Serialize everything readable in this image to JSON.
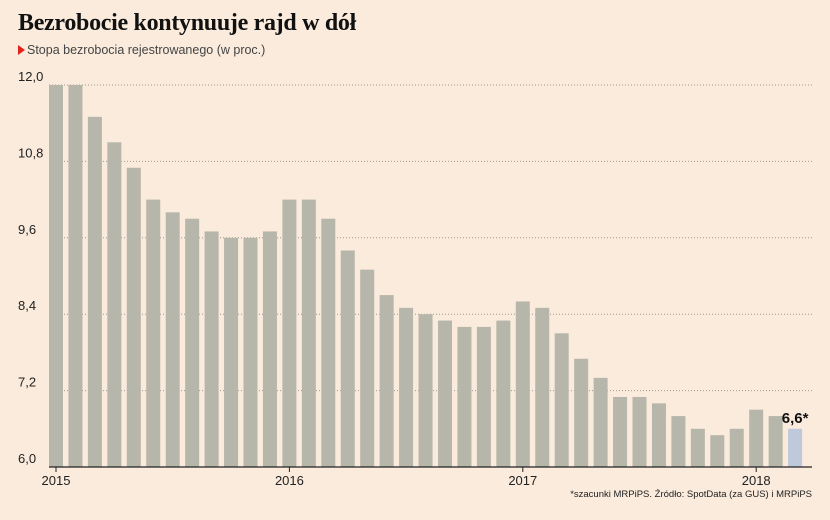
{
  "title": "Bezrobocie kontynuuje rajd w dół",
  "subtitle": "Stopa bezrobocia rejestrowanego (w proc.)",
  "source": "*szacunki MRPiPS. Źródło: SpotData (za GUS) i MRPiPS",
  "colors": {
    "bar": "#b6b6aa",
    "highlight": "#bfc9dc",
    "background": "#faebdc",
    "accent": "#e2231a"
  },
  "chart_data": {
    "type": "bar",
    "title": "Bezrobocie kontynuuje rajd w dół",
    "subtitle": "Stopa bezrobocia rejestrowanego (w proc.)",
    "ylim": [
      6.0,
      12.0
    ],
    "yticks": [
      "12,0",
      "10,8",
      "9,6",
      "8,4",
      "7,2",
      "6,0"
    ],
    "ytick_values": [
      12.0,
      10.8,
      9.6,
      8.4,
      7.2,
      6.0
    ],
    "xtick_labels": [
      "2015",
      "2016",
      "2017",
      "2018"
    ],
    "xtick_index": [
      0,
      12,
      24,
      36
    ],
    "grid": "horizontal dotted",
    "values": [
      12.0,
      12.0,
      11.5,
      11.1,
      10.7,
      10.2,
      10.0,
      9.9,
      9.7,
      9.6,
      9.6,
      9.7,
      10.2,
      10.2,
      9.9,
      9.4,
      9.1,
      8.7,
      8.5,
      8.4,
      8.3,
      8.2,
      8.2,
      8.3,
      8.6,
      8.5,
      8.1,
      7.7,
      7.4,
      7.1,
      7.1,
      7.0,
      6.8,
      6.6,
      6.5,
      6.6,
      6.9,
      6.8,
      6.6
    ],
    "highlight_index": 38,
    "highlight_label": "6,6*"
  }
}
